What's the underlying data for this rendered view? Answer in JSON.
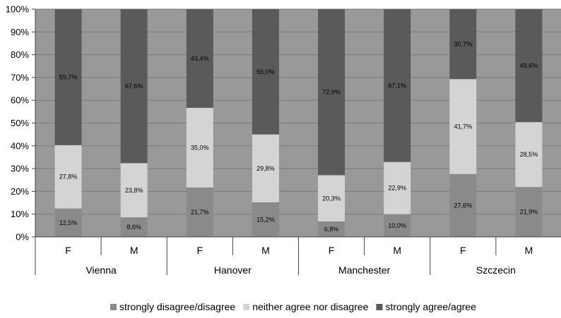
{
  "chart_data": {
    "type": "bar",
    "stacked": true,
    "percent": true,
    "groups": [
      "Vienna",
      "Hanover",
      "Manchester",
      "Szczecin"
    ],
    "subcategories": [
      "F",
      "M"
    ],
    "categories": [
      "Vienna F",
      "Vienna M",
      "Hanover F",
      "Hanover M",
      "Manchester F",
      "Manchester M",
      "Szczecin F",
      "Szczecin M"
    ],
    "series": [
      {
        "name": "strongly disagree/disagree",
        "color": "#8a8a8a",
        "values": [
          12.5,
          8.6,
          21.7,
          15.2,
          6.8,
          10.0,
          27.6,
          21.9
        ],
        "labels": [
          "12,5%",
          "8,6%",
          "21,7%",
          "15,2%",
          "6,8%",
          "10,0%",
          "27,6%",
          "21,9%"
        ]
      },
      {
        "name": "neither agree nor disagree",
        "color": "#d4d4d4",
        "values": [
          27.8,
          23.8,
          35.0,
          29.8,
          20.3,
          22.9,
          41.7,
          28.5
        ],
        "labels": [
          "27,8%",
          "23,8%",
          "35,0%",
          "29,8%",
          "20,3%",
          "22,9%",
          "41,7%",
          "28,5%"
        ]
      },
      {
        "name": "strongly agree/agree",
        "color": "#5a5a5a",
        "values": [
          59.7,
          67.6,
          43.4,
          55.0,
          72.9,
          67.1,
          30.7,
          49.6
        ],
        "labels": [
          "59,7%",
          "67,6%",
          "43,4%",
          "55,0%",
          "72,9%",
          "67,1%",
          "30,7%",
          "49,6%"
        ]
      }
    ],
    "yticks": [
      "0%",
      "10%",
      "20%",
      "30%",
      "40%",
      "50%",
      "60%",
      "70%",
      "80%",
      "90%",
      "100%"
    ],
    "ylim": [
      0,
      100
    ],
    "grid": true,
    "legend": "bottom",
    "plot_background": "#999999"
  }
}
